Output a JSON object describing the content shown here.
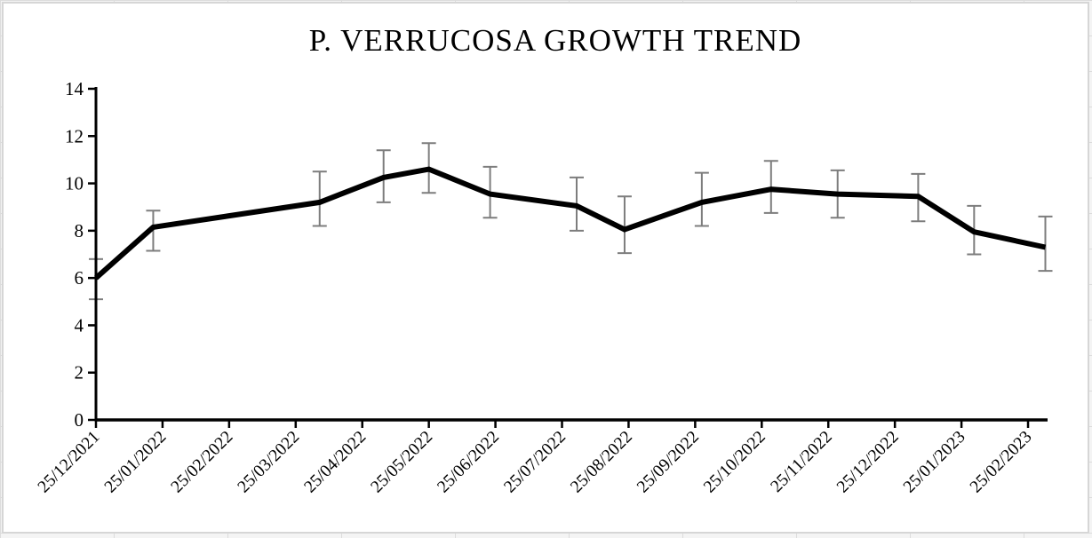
{
  "window": {
    "chart_background": "#ffffff",
    "sheet_gridline_color": "#dcdcdc",
    "chart_border_color": "#d6d6d6"
  },
  "chart_data": {
    "type": "line",
    "title": "P. VERRUCOSA GROWTH TREND",
    "xlabel": "",
    "ylabel": "",
    "ylim": [
      0,
      14
    ],
    "ytick_interval": 2,
    "yticks": [
      0,
      2,
      4,
      6,
      8,
      10,
      12,
      14
    ],
    "categories": [
      "25/12/2021",
      "25/01/2022",
      "25/02/2022",
      "25/03/2022",
      "25/04/2022",
      "25/05/2022",
      "25/06/2022",
      "25/07/2022",
      "25/08/2022",
      "25/09/2022",
      "25/10/2022",
      "25/11/2022",
      "25/12/2022",
      "25/01/2023",
      "25/02/2023"
    ],
    "grid": false,
    "legend_position": "none",
    "axis_color": "#000000",
    "line_color": "#000000",
    "error_bar_color": "#7d7d7d",
    "series": [
      {
        "name": "P. verrucosa growth",
        "points": [
          {
            "x_month": 0.0,
            "y": 6.0,
            "err_low": 5.1,
            "err_high": 6.8
          },
          {
            "x_month": 0.86,
            "y": 8.15,
            "err_low": 7.15,
            "err_high": 8.85
          },
          {
            "x_month": 3.36,
            "y": 9.2,
            "err_low": 8.2,
            "err_high": 10.5
          },
          {
            "x_month": 4.32,
            "y": 10.25,
            "err_low": 9.2,
            "err_high": 11.4
          },
          {
            "x_month": 5.0,
            "y": 10.6,
            "err_low": 9.6,
            "err_high": 11.7
          },
          {
            "x_month": 5.92,
            "y": 9.55,
            "err_low": 8.55,
            "err_high": 10.7
          },
          {
            "x_month": 7.22,
            "y": 9.05,
            "err_low": 8.0,
            "err_high": 10.25
          },
          {
            "x_month": 7.94,
            "y": 8.05,
            "err_low": 7.05,
            "err_high": 9.45
          },
          {
            "x_month": 9.1,
            "y": 9.2,
            "err_low": 8.2,
            "err_high": 10.45
          },
          {
            "x_month": 10.14,
            "y": 9.75,
            "err_low": 8.75,
            "err_high": 10.95
          },
          {
            "x_month": 11.14,
            "y": 9.55,
            "err_low": 8.55,
            "err_high": 10.55
          },
          {
            "x_month": 12.35,
            "y": 9.45,
            "err_low": 8.4,
            "err_high": 10.4
          },
          {
            "x_month": 13.19,
            "y": 7.95,
            "err_low": 7.0,
            "err_high": 9.05
          },
          {
            "x_month": 14.26,
            "y": 7.3,
            "err_low": 6.3,
            "err_high": 8.6
          }
        ]
      }
    ]
  }
}
